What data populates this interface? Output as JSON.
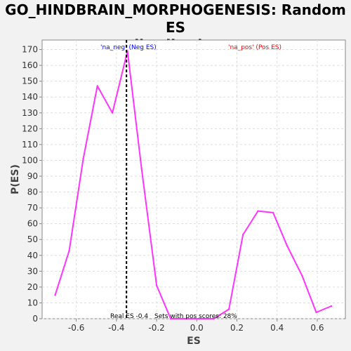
{
  "chart_data": {
    "type": "line",
    "title_lines": [
      "GO_HINDBRAIN_MORPHOGENESIS: Random ES",
      "distribution"
    ],
    "xlabel": "ES",
    "ylabel": "P(ES)",
    "xlim": [
      -0.77,
      0.74
    ],
    "ylim": [
      0,
      176
    ],
    "x_ticks": [
      -0.6,
      -0.4,
      -0.2,
      0.0,
      0.2,
      0.4,
      0.6
    ],
    "x_tick_labels": [
      "-0.6",
      "-0.4",
      "-0.2",
      "0.0",
      "0.2",
      "0.4",
      "0.6"
    ],
    "y_ticks": [
      0,
      10,
      20,
      30,
      40,
      50,
      60,
      70,
      80,
      90,
      100,
      110,
      120,
      130,
      140,
      150,
      160,
      170
    ],
    "grid": true,
    "series": [
      {
        "color": "#ff33ff",
        "x": [
          -0.705,
          -0.635,
          -0.565,
          -0.495,
          -0.42,
          -0.345,
          -0.275,
          -0.2,
          -0.13,
          -0.06,
          0.015,
          0.085,
          0.16,
          0.23,
          0.305,
          0.38,
          0.45,
          0.525,
          0.595,
          0.67
        ],
        "y": [
          15,
          43,
          101,
          147,
          130,
          169,
          95,
          21,
          0,
          0,
          0,
          0,
          6,
          53,
          68,
          67,
          46,
          27,
          4,
          8
        ]
      }
    ],
    "real_es": -0.35,
    "annotations": {
      "neg_label": "'na_neg' (Neg ES)",
      "pos_label": "'na_pos' (Pos ES)",
      "real_es_text": "Real ES -0.4",
      "sets_text": "Sets with pos scores: 28%"
    },
    "colors": {
      "line": "#ff33ff",
      "neg_label": "#0000ff",
      "pos_label": "#ff0000",
      "real_es_line": "#000000"
    }
  }
}
